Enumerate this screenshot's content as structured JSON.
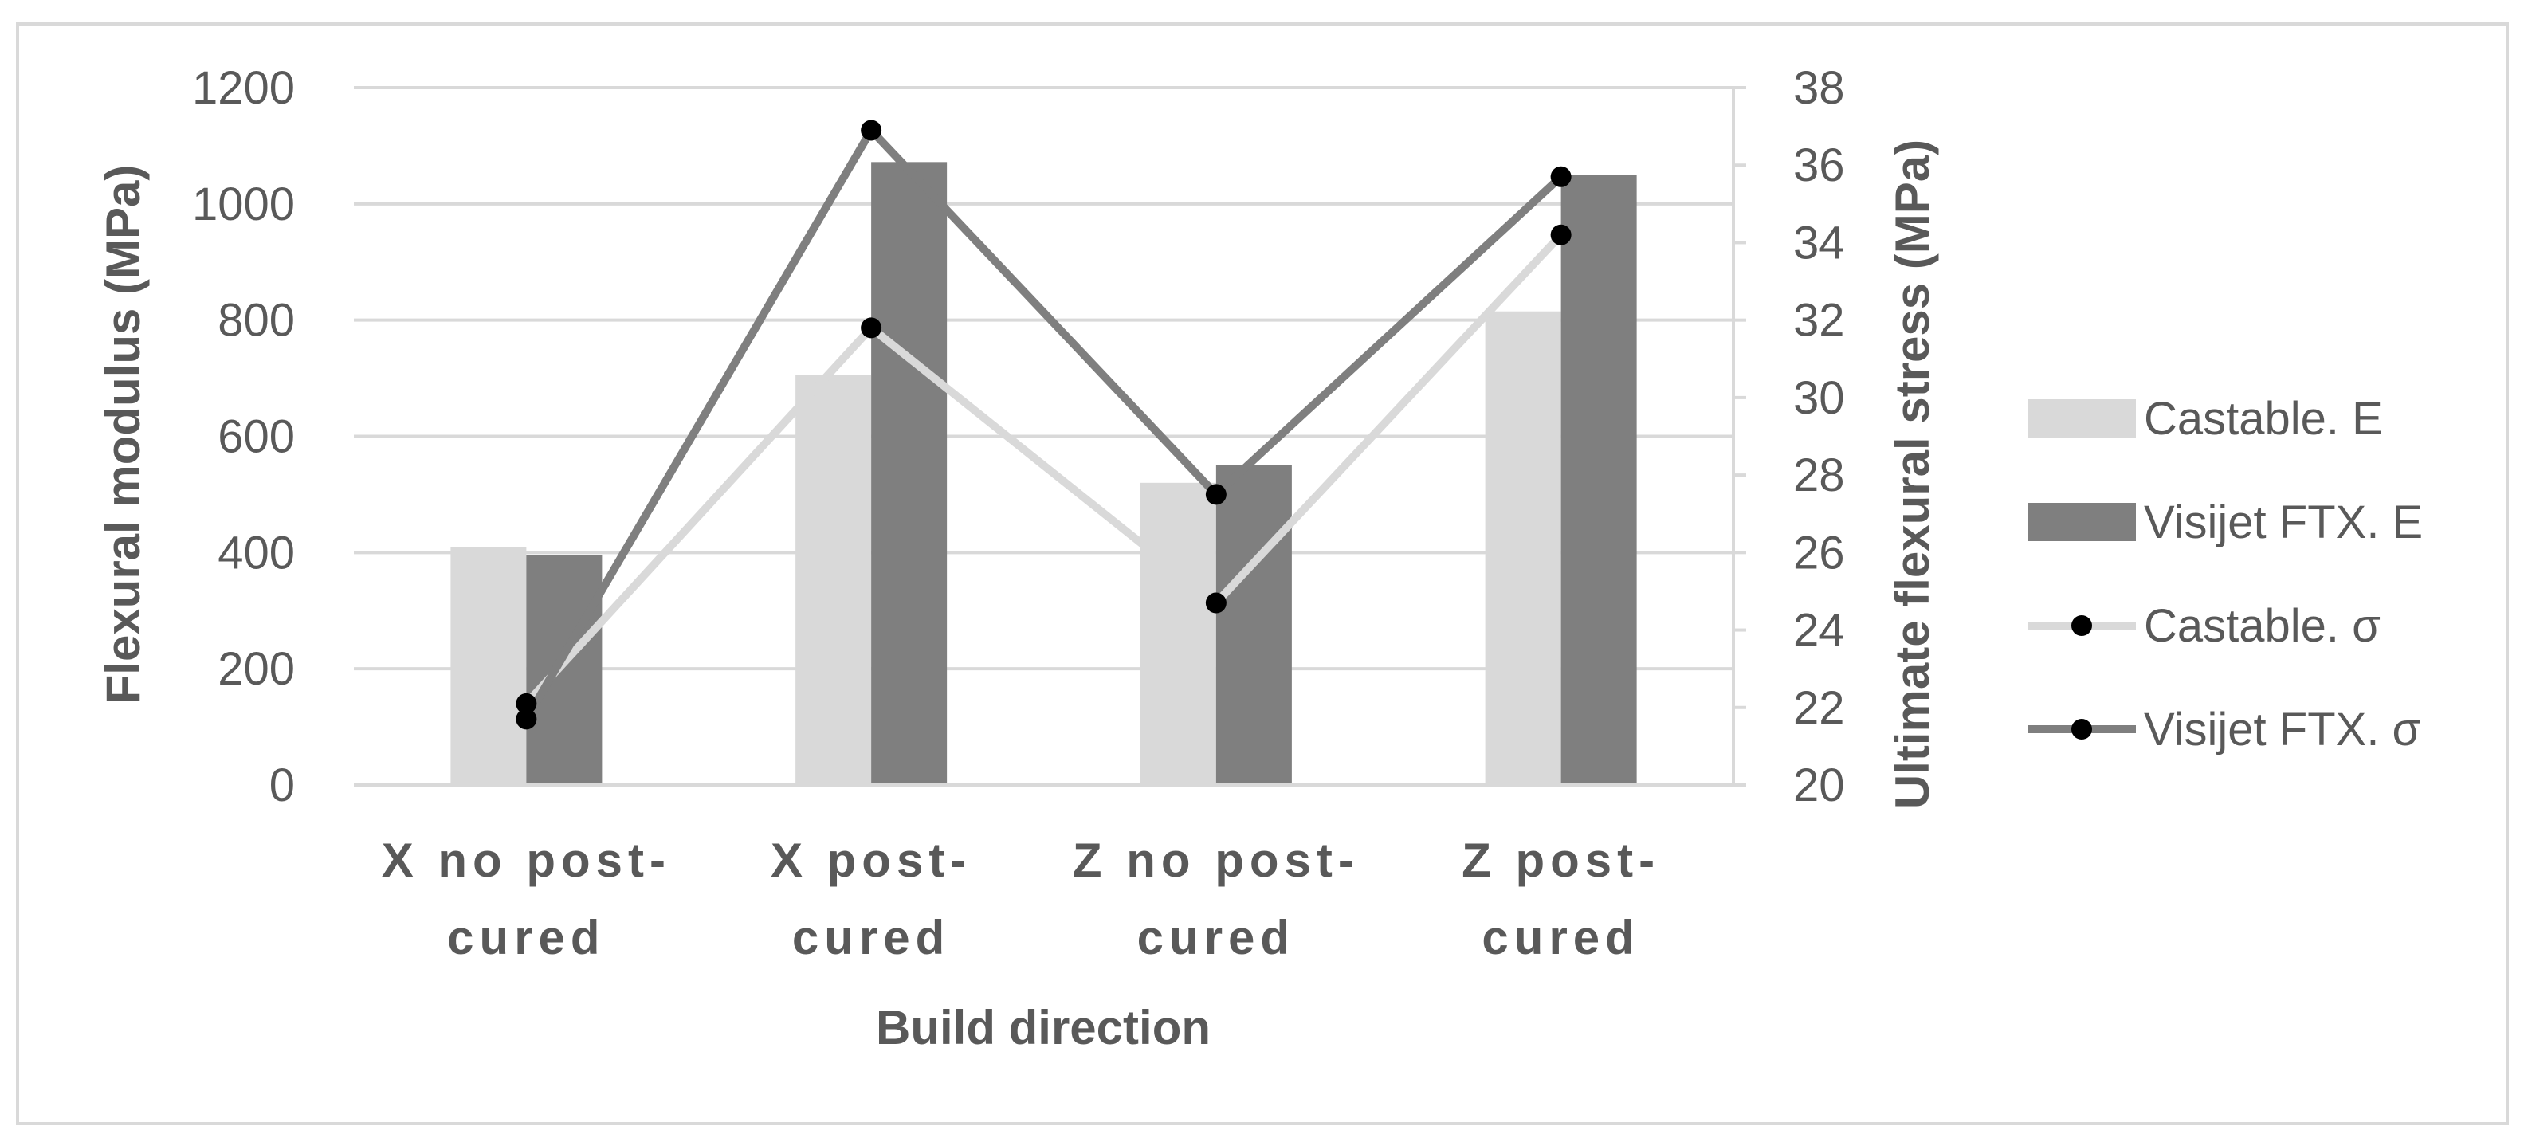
{
  "chart_data": {
    "type": "bar",
    "categories": [
      [
        "X no post-",
        "cured"
      ],
      [
        "X post-",
        "cured"
      ],
      [
        "Z no post-",
        "cured"
      ],
      [
        "Z post-",
        "cured"
      ]
    ],
    "xlabel": "Build direction",
    "ylabel": "Flexural modulus (MPa)",
    "y2label": "Ultimate flexural stress (MPa)",
    "ylim": [
      0,
      1200
    ],
    "yticks": [
      "0",
      "200",
      "400",
      "600",
      "800",
      "1000",
      "1200"
    ],
    "y2lim": [
      20,
      38
    ],
    "y2ticks": [
      "20",
      "22",
      "24",
      "26",
      "28",
      "30",
      "32",
      "34",
      "36",
      "38"
    ],
    "grid": true,
    "legend_position": "right",
    "bar_series": [
      {
        "name": "Castable. E",
        "color": "#d9d9d9",
        "values": [
          410,
          705,
          520,
          815
        ]
      },
      {
        "name": "Visijet FTX. E",
        "color": "#7f7f7f",
        "values": [
          395,
          1072,
          550,
          1050
        ]
      }
    ],
    "line_series": [
      {
        "name": "Castable. σ",
        "line_color": "#d9d9d9",
        "marker_color": "#000000",
        "values": [
          22.1,
          31.8,
          24.7,
          34.2
        ]
      },
      {
        "name": "Visijet FTX. σ",
        "line_color": "#7f7f7f",
        "marker_color": "#000000",
        "values": [
          21.7,
          36.9,
          27.5,
          35.7
        ]
      }
    ]
  }
}
